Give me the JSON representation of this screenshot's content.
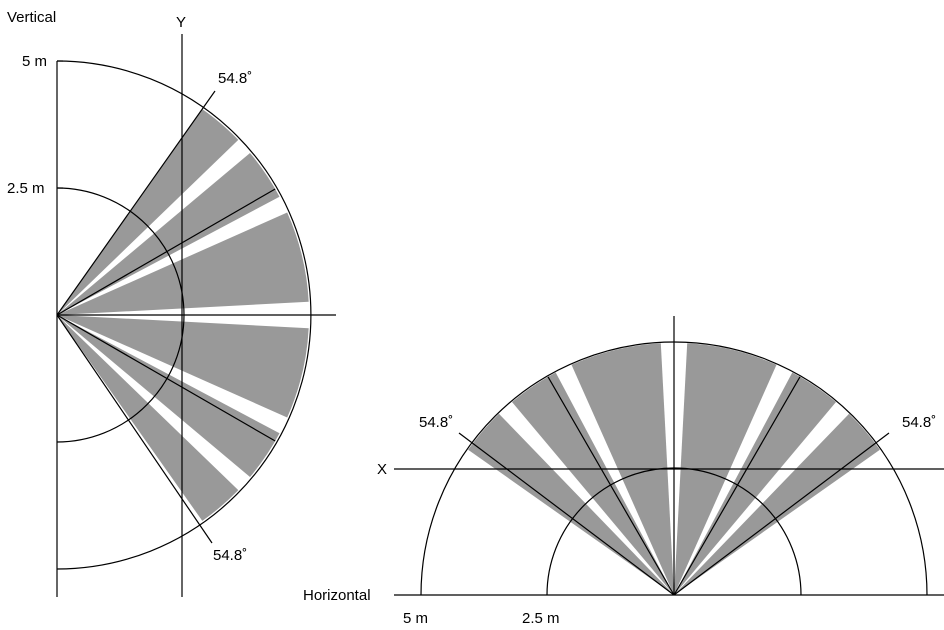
{
  "vertical_view": {
    "view_label": "Vertical",
    "axis_label": "Y",
    "radius_outer_label": "5 m",
    "radius_inner_label": "2.5 m",
    "angle_top_label": "54.8˚",
    "angle_bottom_label": "54.8˚"
  },
  "horizontal_view": {
    "view_label": "Horizontal",
    "axis_label": "X",
    "radius_outer_label": "5 m",
    "radius_inner_label": "2.5 m",
    "angle_left_label": "54.8˚",
    "angle_right_label": "54.8˚"
  },
  "colors": {
    "zone_fill": "#999999",
    "line": "#000000",
    "background": "#ffffff"
  },
  "detection_angle_deg": 54.8,
  "detection_zones": [
    {
      "from_deg": -54.8,
      "to_deg": -44
    },
    {
      "from_deg": -40,
      "to_deg": -28
    },
    {
      "from_deg": -24,
      "to_deg": -3
    },
    {
      "from_deg": 3,
      "to_deg": 24
    },
    {
      "from_deg": 28,
      "to_deg": 40
    },
    {
      "from_deg": 44,
      "to_deg": 54.8
    }
  ]
}
